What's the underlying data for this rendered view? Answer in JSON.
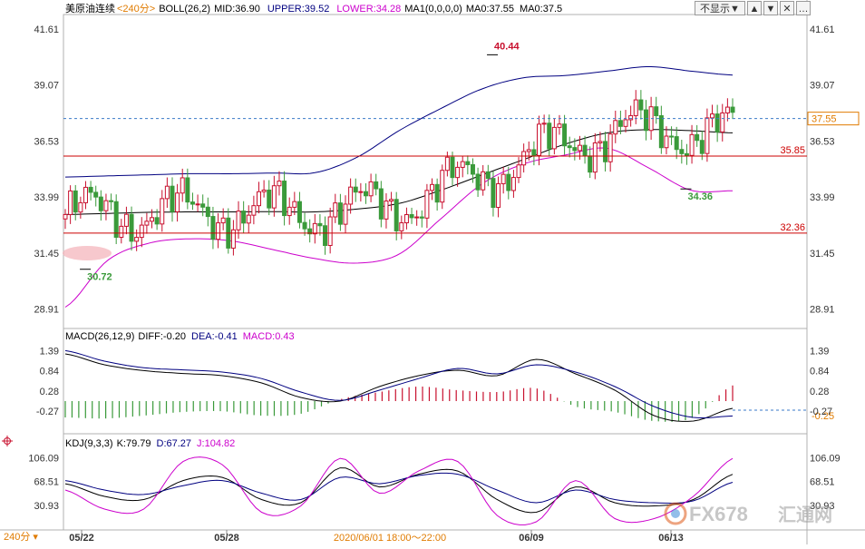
{
  "colors": {
    "up": "#c8102e",
    "down": "#3a9a3a",
    "boll_mid": "#000000",
    "boll_upper": "#000080",
    "boll_lower": "#cc00cc",
    "diff": "#000000",
    "dea": "#000080",
    "macd": "#cc00cc",
    "k": "#000000",
    "d": "#000080",
    "j": "#cc00cc",
    "period": "#e07b00",
    "hline": "#cc0000"
  },
  "header": {
    "instrument": "美原油连续",
    "period": "<240分>",
    "boll_label": "BOLL(26,2)",
    "mid_label": "MID:36.90",
    "upper_label": "UPPER:39.52",
    "lower_label": "LOWER:34.28",
    "ma_label": "MA1(0,0,0,0)",
    "ma0a_label": "MA0:37.55",
    "ma0b_label": "MA0:37.5",
    "hide_button": "不显示▼"
  },
  "macd_header": {
    "params": "MACD(26,12,9)",
    "diff": "DIFF:-0.20",
    "dea": "DEA:-0.41",
    "macd": "MACD:0.43"
  },
  "kdj_header": {
    "params": "KDJ(9,3,3)",
    "k": "K:79.79",
    "d": "D:67.27",
    "j": "J:104.82"
  },
  "footer": {
    "period_button": "240分",
    "center_time": "2020/06/01 18:00～22:00"
  },
  "watermark": {
    "brand": "FX678",
    "cn": "汇通网"
  },
  "chart_data": [
    {
      "type": "candlestick",
      "title": "美原油连续",
      "y_ticks": [
        "41.61",
        "39.07",
        "36.53",
        "33.99",
        "31.45",
        "28.91"
      ],
      "ylim": [
        28.2,
        42.1
      ],
      "current_price": "37.55",
      "horizontal_lines": [
        {
          "label": "35.85",
          "value": 35.85
        },
        {
          "label": "32.36",
          "value": 32.36
        }
      ],
      "annotations": [
        {
          "label": "40.44",
          "value": 40.44
        },
        {
          "label": "34.36",
          "value": 34.36
        },
        {
          "label": "30.72",
          "value": 30.72
        }
      ],
      "x_tick_labels": [
        "05/22",
        "05/28",
        "06/09",
        "06/13"
      ],
      "series": [
        {
          "name": "MID",
          "values": [
            33.2,
            33.25,
            33.3,
            33.32,
            33.32,
            33.33,
            33.32,
            33.45,
            33.7,
            34.3,
            35.0,
            35.7,
            36.4,
            36.9,
            37.05,
            37.0,
            36.9
          ]
        },
        {
          "name": "UPPER",
          "values": [
            34.9,
            34.95,
            35.0,
            35.05,
            35.05,
            35.08,
            35.1,
            35.8,
            37.0,
            38.0,
            38.9,
            39.4,
            39.5,
            39.7,
            39.9,
            39.7,
            39.52
          ]
        },
        {
          "name": "LOWER",
          "values": [
            29.0,
            31.1,
            31.9,
            32.1,
            32.0,
            31.6,
            31.2,
            31.0,
            31.4,
            33.0,
            34.6,
            35.5,
            35.9,
            36.2,
            35.3,
            34.3,
            34.28
          ]
        }
      ]
    },
    {
      "type": "bar",
      "title": "MACD(26,12,9)",
      "y_ticks": [
        "1.39",
        "0.84",
        "0.28",
        "-0.27"
      ],
      "ylim": [
        -0.8,
        1.6
      ],
      "current_value": "-0.25",
      "series": [
        {
          "name": "DIFF",
          "values": [
            1.3,
            1.0,
            0.84,
            0.76,
            0.7,
            0.5,
            0.1,
            0.0,
            0.4,
            0.7,
            0.85,
            0.7,
            1.15,
            0.75,
            0.3,
            -0.4,
            -0.55,
            -0.2
          ]
        },
        {
          "name": "DEA",
          "values": [
            1.39,
            1.1,
            0.92,
            0.86,
            0.8,
            0.62,
            0.25,
            0.02,
            0.3,
            0.62,
            0.9,
            0.75,
            1.0,
            0.8,
            0.4,
            -0.15,
            -0.45,
            -0.41
          ]
        },
        {
          "name": "MACD",
          "values": [
            -0.45,
            -0.48,
            -0.4,
            -0.3,
            -0.28,
            -0.4,
            -0.35,
            0.05,
            0.25,
            0.4,
            0.3,
            0.25,
            0.35,
            -0.15,
            -0.3,
            -0.55,
            -0.45,
            0.43
          ]
        }
      ]
    },
    {
      "type": "line",
      "title": "KDJ(9,3,3)",
      "y_ticks": [
        "106.09",
        "68.51",
        "30.93"
      ],
      "ylim": [
        -5,
        118
      ],
      "series": [
        {
          "name": "K",
          "values": [
            65,
            45,
            40,
            70,
            75,
            40,
            35,
            90,
            60,
            80,
            85,
            40,
            20,
            60,
            35,
            30,
            40,
            79.79
          ]
        },
        {
          "name": "D",
          "values": [
            70,
            55,
            48,
            62,
            70,
            50,
            40,
            75,
            65,
            78,
            80,
            55,
            35,
            55,
            40,
            35,
            38,
            67.27
          ]
        },
        {
          "name": "J",
          "values": [
            55,
            25,
            25,
            100,
            95,
            20,
            30,
            105,
            50,
            85,
            100,
            15,
            5,
            70,
            10,
            10,
            45,
            104.82
          ]
        }
      ]
    }
  ]
}
